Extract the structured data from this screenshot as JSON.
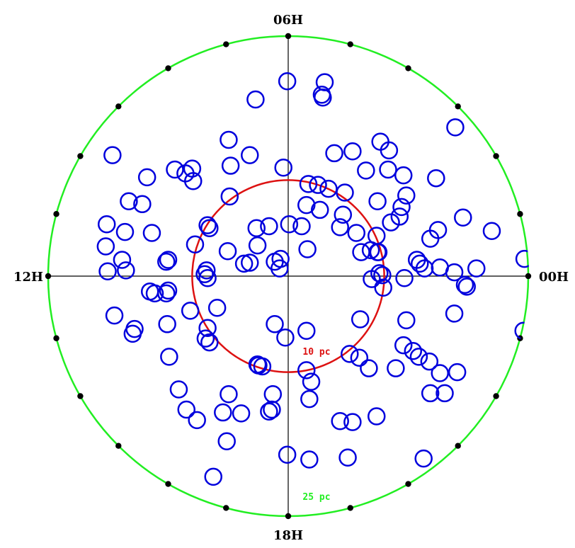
{
  "chart_data": {
    "type": "scatter",
    "projection": "polar",
    "hour_labels": {
      "top": "06H",
      "left": "12H",
      "right": "00H",
      "bottom": "18H"
    },
    "rings": [
      {
        "label": "10 pc",
        "radius_pc": 10,
        "color": "#dd1111"
      },
      {
        "label": "25 pc",
        "radius_pc": 25,
        "color": "#22ee22"
      }
    ],
    "outer_radius_pc": 25,
    "tick_dots_per_ring": 24,
    "marker": {
      "shape": "open-circle",
      "color": "#0000dd"
    },
    "series": [
      {
        "points_xy_pc": [
          [
            -0.1,
            20.3
          ],
          [
            3.8,
            20.2
          ],
          [
            3.6,
            18.6
          ],
          [
            3.5,
            18.9
          ],
          [
            -3.4,
            18.4
          ],
          [
            17.4,
            15.5
          ],
          [
            -6.2,
            14.2
          ],
          [
            -18.3,
            12.6
          ],
          [
            9.6,
            14.0
          ],
          [
            10.5,
            13.1
          ],
          [
            6.7,
            13.0
          ],
          [
            4.8,
            12.8
          ],
          [
            -4.0,
            12.6
          ],
          [
            -6.0,
            11.5
          ],
          [
            -10.7,
            10.7
          ],
          [
            -11.8,
            11.1
          ],
          [
            -14.7,
            10.3
          ],
          [
            -10.0,
            11.2
          ],
          [
            -0.5,
            11.3
          ],
          [
            8.1,
            11.0
          ],
          [
            10.4,
            11.1
          ],
          [
            12.0,
            10.5
          ],
          [
            15.4,
            10.2
          ],
          [
            -9.9,
            9.9
          ],
          [
            2.1,
            9.6
          ],
          [
            3.1,
            9.5
          ],
          [
            4.2,
            9.1
          ],
          [
            5.9,
            8.7
          ],
          [
            12.3,
            8.4
          ],
          [
            -16.6,
            7.8
          ],
          [
            -15.2,
            7.5
          ],
          [
            -6.1,
            8.3
          ],
          [
            1.9,
            7.4
          ],
          [
            9.3,
            7.8
          ],
          [
            11.8,
            7.2
          ],
          [
            3.3,
            6.9
          ],
          [
            5.7,
            6.4
          ],
          [
            11.6,
            6.2
          ],
          [
            -18.9,
            5.4
          ],
          [
            -17.0,
            4.6
          ],
          [
            -14.2,
            4.5
          ],
          [
            -8.2,
            5.0
          ],
          [
            -8.4,
            5.3
          ],
          [
            -3.3,
            5.0
          ],
          [
            -2.0,
            5.2
          ],
          [
            0.1,
            5.4
          ],
          [
            1.4,
            5.2
          ],
          [
            5.4,
            5.1
          ],
          [
            10.7,
            5.6
          ],
          [
            15.6,
            4.8
          ],
          [
            18.2,
            6.1
          ],
          [
            21.2,
            4.7
          ],
          [
            7.1,
            4.5
          ],
          [
            9.2,
            4.2
          ],
          [
            14.8,
            3.9
          ],
          [
            -19.0,
            3.1
          ],
          [
            -9.7,
            3.3
          ],
          [
            -3.2,
            3.2
          ],
          [
            -6.3,
            2.6
          ],
          [
            2.0,
            2.8
          ],
          [
            9.4,
            2.5
          ],
          [
            -17.3,
            1.7
          ],
          [
            -12.5,
            1.7
          ],
          [
            -12.7,
            1.5
          ],
          [
            -0.8,
            1.8
          ],
          [
            -4.0,
            1.4
          ],
          [
            -4.6,
            1.3
          ],
          [
            -1.4,
            1.5
          ],
          [
            7.6,
            2.5
          ],
          [
            8.6,
            2.7
          ],
          [
            9.3,
            2.5
          ],
          [
            13.4,
            1.7
          ],
          [
            13.7,
            1.3
          ],
          [
            19.6,
            0.8
          ],
          [
            24.6,
            1.8
          ],
          [
            -18.8,
            0.5
          ],
          [
            -16.9,
            0.6
          ],
          [
            -8.5,
            0.6
          ],
          [
            -8.7,
            0.2
          ],
          [
            -0.9,
            0.8
          ],
          [
            9.5,
            0.3
          ],
          [
            9.8,
            0.1
          ],
          [
            14.2,
            0.8
          ],
          [
            15.8,
            0.9
          ],
          [
            17.3,
            0.4
          ],
          [
            -8.4,
            -0.2
          ],
          [
            8.7,
            -0.3
          ],
          [
            12.1,
            -0.2
          ],
          [
            18.6,
            -1.1
          ],
          [
            -14.4,
            -1.6
          ],
          [
            -13.9,
            -1.8
          ],
          [
            -12.5,
            -1.5
          ],
          [
            -12.7,
            -1.8
          ],
          [
            9.9,
            -1.2
          ],
          [
            18.4,
            -0.9
          ],
          [
            -7.4,
            -3.3
          ],
          [
            -10.2,
            -3.6
          ],
          [
            17.3,
            -3.9
          ],
          [
            -18.1,
            -4.1
          ],
          [
            -12.6,
            -5.0
          ],
          [
            -1.4,
            -5.0
          ],
          [
            7.5,
            -4.5
          ],
          [
            12.3,
            -4.6
          ],
          [
            -16.0,
            -5.5
          ],
          [
            -16.2,
            -6.0
          ],
          [
            -8.4,
            -5.4
          ],
          [
            1.9,
            -5.7
          ],
          [
            -8.6,
            -6.5
          ],
          [
            24.5,
            -5.7
          ],
          [
            -8.2,
            -6.9
          ],
          [
            -0.3,
            -6.4
          ],
          [
            12.0,
            -7.2
          ],
          [
            -12.4,
            -8.4
          ],
          [
            13.0,
            -7.8
          ],
          [
            13.6,
            -8.4
          ],
          [
            6.4,
            -8.1
          ],
          [
            7.4,
            -8.5
          ],
          [
            14.7,
            -8.9
          ],
          [
            -3.2,
            -9.2
          ],
          [
            -2.7,
            -9.4
          ],
          [
            -3.1,
            -9.3
          ],
          [
            8.4,
            -9.6
          ],
          [
            11.2,
            -9.6
          ],
          [
            15.8,
            -10.1
          ],
          [
            17.6,
            -10.0
          ],
          [
            1.9,
            -9.8
          ],
          [
            2.4,
            -11.0
          ],
          [
            -11.4,
            -11.8
          ],
          [
            -6.2,
            -12.3
          ],
          [
            -1.6,
            -12.3
          ],
          [
            -1.7,
            -13.9
          ],
          [
            16.3,
            -12.2
          ],
          [
            14.8,
            -12.2
          ],
          [
            2.2,
            -12.8
          ],
          [
            -10.6,
            -13.9
          ],
          [
            -6.8,
            -14.2
          ],
          [
            -2.0,
            -14.1
          ],
          [
            -4.9,
            -14.3
          ],
          [
            -9.5,
            -15.0
          ],
          [
            5.4,
            -15.1
          ],
          [
            6.7,
            -15.2
          ],
          [
            9.2,
            -14.6
          ],
          [
            -6.4,
            -17.2
          ],
          [
            -0.1,
            -18.6
          ],
          [
            2.2,
            -19.1
          ],
          [
            6.2,
            -18.9
          ],
          [
            14.1,
            -19.0
          ],
          [
            -7.8,
            -20.9
          ]
        ]
      }
    ]
  }
}
